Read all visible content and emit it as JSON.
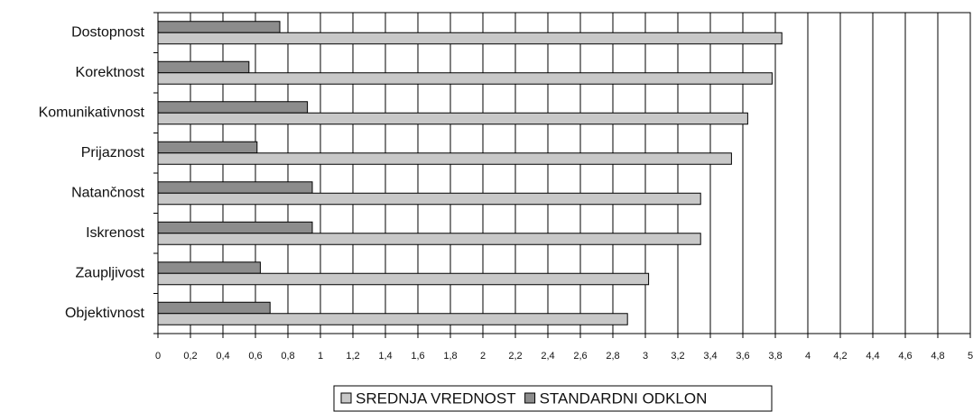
{
  "chart_data": {
    "type": "barh",
    "categories": [
      "Dostopnost",
      "Korektnost",
      "Komunikativnost",
      "Prijaznost",
      "Natančnost",
      "Iskrenost",
      "Zaupljivost",
      "Objektivnost"
    ],
    "series": [
      {
        "name": "SREDNJA VREDNOST",
        "color": "#c8c8c8",
        "values": [
          3.84,
          3.78,
          3.63,
          3.53,
          3.34,
          3.34,
          3.02,
          2.89
        ]
      },
      {
        "name": "STANDARDNI ODKLON",
        "color": "#8c8c8c",
        "values": [
          0.75,
          0.56,
          0.92,
          0.61,
          0.95,
          0.95,
          0.63,
          0.69
        ]
      }
    ],
    "xlim": [
      0,
      5
    ],
    "xticks": [
      0,
      {
        "value": 0.2,
        "label": "0,2"
      },
      {
        "value": 0.4,
        "label": "0,4"
      },
      {
        "value": 0.6,
        "label": "0,6"
      },
      {
        "value": 0.8,
        "label": "0,8"
      },
      1,
      {
        "value": 1.2,
        "label": "1,2"
      },
      {
        "value": 1.4,
        "label": "1,4"
      },
      {
        "value": 1.6,
        "label": "1,6"
      },
      {
        "value": 1.8,
        "label": "1,8"
      },
      2,
      {
        "value": 2.2,
        "label": "2,2"
      },
      {
        "value": 2.4,
        "label": "2,4"
      },
      {
        "value": 2.6,
        "label": "2,6"
      },
      {
        "value": 2.8,
        "label": "2,8"
      },
      3,
      {
        "value": 3.2,
        "label": "3,2"
      },
      {
        "value": 3.4,
        "label": "3,4"
      },
      {
        "value": 3.6,
        "label": "3,6"
      },
      {
        "value": 3.8,
        "label": "3,8"
      },
      4,
      {
        "value": 4.2,
        "label": "4,2"
      },
      {
        "value": 4.4,
        "label": "4,4"
      },
      {
        "value": 4.6,
        "label": "4,6"
      },
      {
        "value": 4.8,
        "label": "4,8"
      },
      5
    ],
    "grid": true,
    "legend": "bottom"
  }
}
